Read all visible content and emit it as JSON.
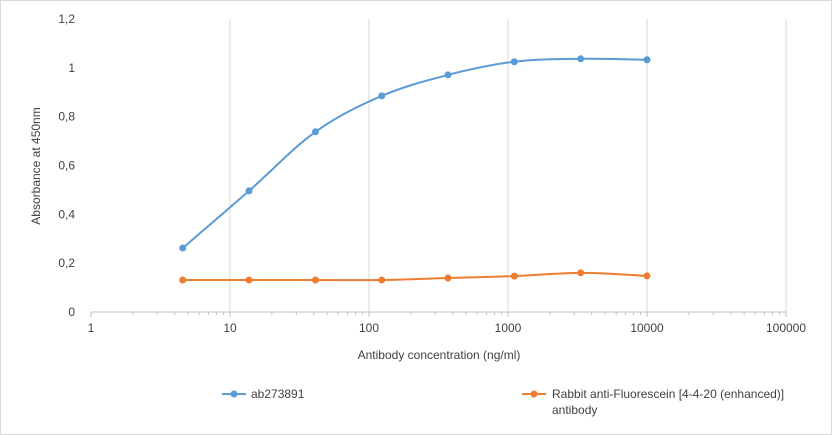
{
  "chart_data": {
    "type": "line",
    "title": "",
    "xlabel": "Antibody concentration (ng/ml)",
    "ylabel": "Absorbance at 450nm",
    "x_scale": "log",
    "xlim": [
      1,
      100000
    ],
    "ylim": [
      0,
      1.2
    ],
    "x_ticks": [
      "1",
      "10",
      "100",
      "1000",
      "10000",
      "100000"
    ],
    "y_ticks": [
      "0",
      "0,2",
      "0,4",
      "0,6",
      "0,8",
      "1",
      "1,2"
    ],
    "grid": "vertical major gridlines",
    "legend_position": "bottom",
    "x": [
      4.57,
      13.7,
      41.2,
      123.5,
      370,
      1111,
      3333,
      10000
    ],
    "series": [
      {
        "name": "ab273891",
        "color": "#5b9bd5",
        "values": [
          0.262,
          0.496,
          0.738,
          0.885,
          0.971,
          1.025,
          1.037,
          1.033
        ]
      },
      {
        "name": "Rabbit anti-Fluorescein [4-4-20 (enhanced)] antibody",
        "name_lines": [
          "Rabbit anti-Fluorescein [4-4-20 (enhanced)]",
          "antibody"
        ],
        "color": "#ed7d31",
        "values": [
          0.131,
          0.131,
          0.131,
          0.131,
          0.139,
          0.147,
          0.16,
          0.148
        ]
      }
    ]
  }
}
